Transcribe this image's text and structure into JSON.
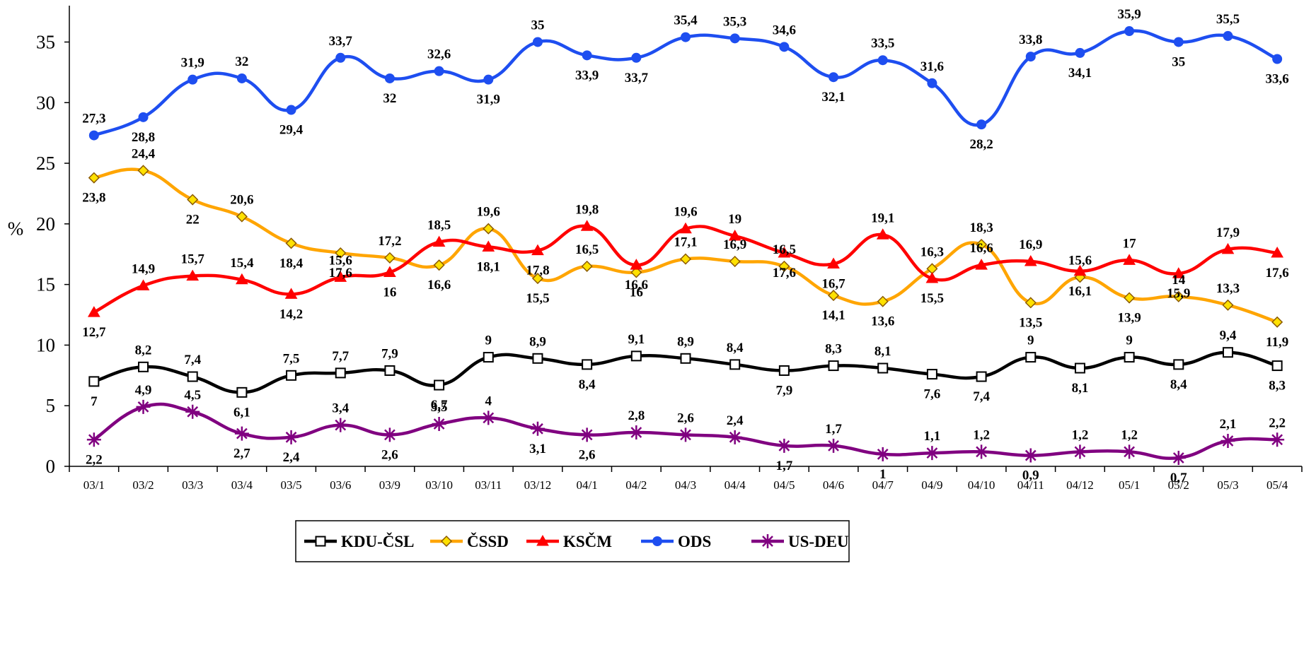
{
  "chart_data": {
    "type": "line",
    "ylabel": "%",
    "ylim": [
      0,
      38
    ],
    "yticks": [
      0,
      5,
      10,
      15,
      20,
      25,
      30,
      35
    ],
    "legend_position": "bottom",
    "categories": [
      "03/1",
      "03/2",
      "03/3",
      "03/4",
      "03/5",
      "03/6",
      "03/9",
      "03/10",
      "03/11",
      "03/12",
      "04/1",
      "04/2",
      "04/3",
      "04/4",
      "04/5",
      "04/6",
      "04/7",
      "04/9",
      "04/10",
      "04/11",
      "04/12",
      "05/1",
      "05/2",
      "05/3",
      "05/4"
    ],
    "series": [
      {
        "name": "KDU-ČSL",
        "color": "#000000",
        "marker": "square",
        "values": [
          7,
          8.2,
          7.4,
          6.1,
          7.5,
          7.7,
          7.9,
          6.7,
          9,
          8.9,
          8.4,
          9.1,
          8.9,
          8.4,
          7.9,
          8.3,
          8.1,
          7.6,
          7.4,
          9,
          8.1,
          9,
          8.4,
          9.4,
          8.3
        ],
        "labels": [
          "7",
          "8,2",
          "7,4",
          "6,1",
          "7,5",
          "7,7",
          "7,9",
          "6,7",
          "9",
          "8,9",
          "8,4",
          "9,1",
          "8,9",
          "8,4",
          "7,9",
          "8,3",
          "8,1",
          "7,6",
          "7,4",
          "9",
          "8,1",
          "9",
          "8,4",
          "9,4",
          "8,3"
        ]
      },
      {
        "name": "ČSSD",
        "color": "#FFA500",
        "marker": "diamond",
        "values": [
          23.8,
          24.4,
          22,
          20.6,
          18.4,
          17.6,
          17.2,
          16.6,
          19.6,
          15.5,
          16.5,
          16,
          17.1,
          16.9,
          16.5,
          14.1,
          13.6,
          16.3,
          18.3,
          13.5,
          15.6,
          13.9,
          14,
          13.3,
          11.9
        ],
        "labels": [
          "23,8",
          "24,4",
          "22",
          "20,6",
          "18,4",
          "17,6",
          "17,2",
          "16,6",
          "19,6",
          "15,5",
          "16,5",
          "16",
          "17,1",
          "16,9",
          "16,5",
          "14,1",
          "13,6",
          "16,3",
          "18,3",
          "13,5",
          "15,6",
          "13,9",
          "14",
          "13,3",
          "11,9"
        ]
      },
      {
        "name": "KSČM",
        "color": "#FF0000",
        "marker": "triangle",
        "values": [
          12.7,
          14.9,
          15.7,
          15.4,
          14.2,
          15.6,
          16,
          18.5,
          18.1,
          17.8,
          19.8,
          16.6,
          19.6,
          19,
          17.6,
          16.7,
          19.1,
          15.5,
          16.6,
          16.9,
          16.1,
          17,
          15.9,
          17.9,
          17.6
        ],
        "labels": [
          "12,7",
          "14,9",
          "15,7",
          "15,4",
          "14,2",
          "15,6",
          "16",
          "18,5",
          "18,1",
          "17,8",
          "19,8",
          "16,6",
          "19,6",
          "19",
          "17,6",
          "16,7",
          "19,1",
          "15,5",
          "16,6",
          "16,9",
          "16,1",
          "17",
          "15,9",
          "17,9",
          "17,6"
        ]
      },
      {
        "name": "ODS",
        "color": "#1E4EF0",
        "marker": "circle",
        "values": [
          27.3,
          28.8,
          31.9,
          32,
          29.4,
          33.7,
          32,
          32.6,
          31.9,
          35,
          33.9,
          33.7,
          35.4,
          35.3,
          34.6,
          32.1,
          33.5,
          31.6,
          28.2,
          33.8,
          34.1,
          35.9,
          35,
          35.5,
          33.6
        ],
        "labels": [
          "27,3",
          "28,8",
          "31,9",
          "32",
          "29,4",
          "33,7",
          "32",
          "32,6",
          "31,9",
          "35",
          "33,9",
          "33,7",
          "35,4",
          "35,3",
          "34,6",
          "32,1",
          "33,5",
          "31,6",
          "28,2",
          "33,8",
          "34,1",
          "35,9",
          "35",
          "35,5",
          "33,6"
        ]
      },
      {
        "name": "US-DEU",
        "color": "#800080",
        "marker": "star",
        "values": [
          2.2,
          4.9,
          4.5,
          2.7,
          2.4,
          3.4,
          2.6,
          3.5,
          4,
          3.1,
          2.6,
          2.8,
          2.6,
          2.4,
          1.7,
          1.7,
          1,
          1.1,
          1.2,
          0.9,
          1.2,
          1.2,
          0.7,
          2.1,
          2.2
        ],
        "labels": [
          "2,2",
          "4,9",
          "4,5",
          "2,7",
          "2,4",
          "3,4",
          "2,6",
          "3,5",
          "4",
          "3,1",
          "2,6",
          "2,8",
          "2,6",
          "2,4",
          "1,7",
          "1,7",
          "1",
          "1,1",
          "1,2",
          "0,9",
          "1,2",
          "1,2",
          "0,7",
          "2,1",
          "2,2"
        ]
      }
    ]
  }
}
